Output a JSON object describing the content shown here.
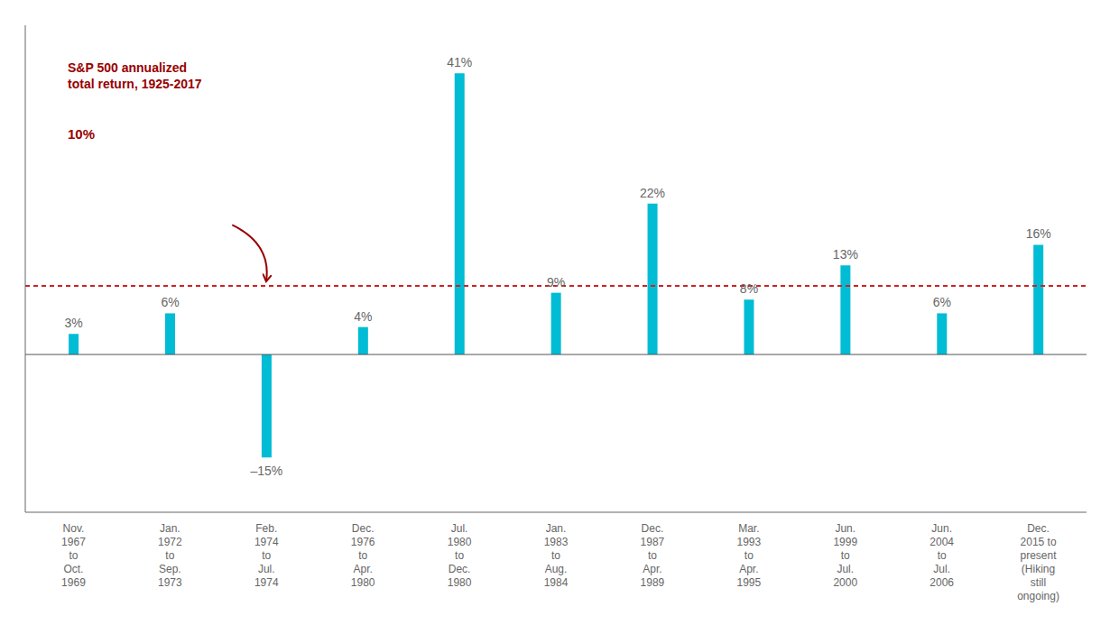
{
  "chart_data": {
    "type": "bar",
    "categories": [
      "Nov.\n1967\nto\nOct.\n1969",
      "Jan.\n1972\nto\nSep.\n1973",
      "Feb.\n1974\nto\nJul.\n1974",
      "Dec.\n1976\nto\nApr.\n1980",
      "Jul.\n1980\nto\nDec.\n1980",
      "Jan.\n1983\nto\nAug.\n1984",
      "Dec.\n1987\nto\nApr.\n1989",
      "Mar.\n1993\nto\nApr.\n1995",
      "Jun.\n1999\nto\nJul.\n2000",
      "Jun.\n2004\nto\nJul.\n2006",
      "Dec.\n2015 to\npresent\n(Hiking\nstill\nongoing)"
    ],
    "values": [
      3,
      6,
      -15,
      4,
      41,
      9,
      22,
      8,
      13,
      6,
      16
    ],
    "value_labels": [
      "3%",
      "6%",
      "–15%",
      "4%",
      "41%",
      "9%",
      "22%",
      "8%",
      "13%",
      "6%",
      "16%"
    ],
    "data_labels": true,
    "color": "#00BCD4",
    "ylim": [
      -23,
      48
    ],
    "grid": false,
    "tick_labels": "x",
    "reference_lines": [
      {
        "value": 10,
        "color": "#cc2222",
        "line_style": "dashed"
      },
      {
        "value": 0,
        "color": "#555555",
        "line_style": "solid"
      }
    ],
    "annotations": [
      {
        "text": "S&P 500 annualized\ntotal return, 1925-2017",
        "color": "#990000"
      },
      {
        "text": "10%",
        "color": "#990000"
      }
    ]
  }
}
